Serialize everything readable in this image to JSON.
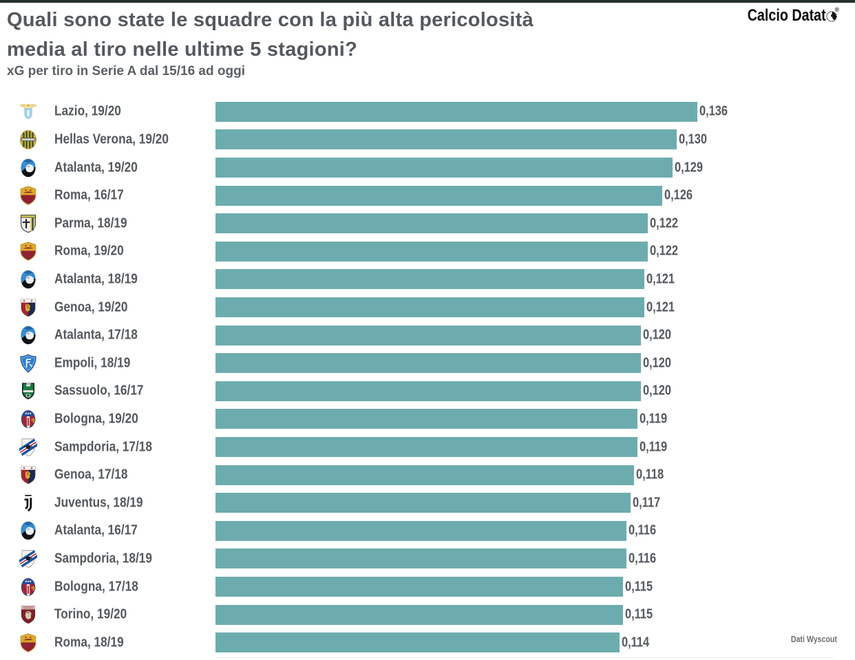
{
  "page": {
    "background": "#ffffff",
    "top_border_color": "#242f2c",
    "accent_teal": "#6dacae",
    "text_gray": "#54595e"
  },
  "header": {
    "title_line1": "Quali sono state le squadre con la più alta pericolosità",
    "title_line2": "media al tiro nelle ultime 5 stagioni?",
    "subtitle": "xG per tiro in Serie A dal 15/16 ad oggi"
  },
  "logo": {
    "text": "Calcio Datat",
    "ball_icon": "football-icon",
    "registered_mark": "®"
  },
  "footer": {
    "source": "Dati Wyscout"
  },
  "chart_data": {
    "type": "bar",
    "orientation": "horizontal",
    "title": "Quali sono state le squadre con la più alta pericolosità media al tiro nelle ultime 5 stagioni?",
    "subtitle": "xG per tiro in Serie A dal 15/16 ad oggi",
    "xlabel": "xG per tiro",
    "xlim": [
      0,
      0.136
    ],
    "bar_color": "#6dacae",
    "value_format": "0,000 (comma decimal)",
    "legend": "none",
    "grid": "off",
    "source": "Dati Wyscout",
    "rows": [
      {
        "team": "Lazio",
        "season": "19/20",
        "label": "Lazio, 19/20",
        "value": 0.136,
        "value_label": "0,136",
        "icon": "lazio-crest"
      },
      {
        "team": "Hellas Verona",
        "season": "19/20",
        "label": "Hellas Verona, 19/20",
        "value": 0.13,
        "value_label": "0,130",
        "icon": "hellas-verona-crest"
      },
      {
        "team": "Atalanta",
        "season": "19/20",
        "label": "Atalanta, 19/20",
        "value": 0.129,
        "value_label": "0,129",
        "icon": "atalanta-crest"
      },
      {
        "team": "Roma",
        "season": "16/17",
        "label": "Roma, 16/17",
        "value": 0.126,
        "value_label": "0,126",
        "icon": "roma-crest"
      },
      {
        "team": "Parma",
        "season": "18/19",
        "label": "Parma, 18/19",
        "value": 0.122,
        "value_label": "0,122",
        "icon": "parma-crest"
      },
      {
        "team": "Roma",
        "season": "19/20",
        "label": "Roma, 19/20",
        "value": 0.122,
        "value_label": "0,122",
        "icon": "roma-crest"
      },
      {
        "team": "Atalanta",
        "season": "18/19",
        "label": "Atalanta, 18/19",
        "value": 0.121,
        "value_label": "0,121",
        "icon": "atalanta-crest"
      },
      {
        "team": "Genoa",
        "season": "19/20",
        "label": "Genoa, 19/20",
        "value": 0.121,
        "value_label": "0,121",
        "icon": "genoa-crest"
      },
      {
        "team": "Atalanta",
        "season": "17/18",
        "label": "Atalanta, 17/18",
        "value": 0.12,
        "value_label": "0,120",
        "icon": "atalanta-crest"
      },
      {
        "team": "Empoli",
        "season": "18/19",
        "label": "Empoli, 18/19",
        "value": 0.12,
        "value_label": "0,120",
        "icon": "empoli-crest"
      },
      {
        "team": "Sassuolo",
        "season": "16/17",
        "label": "Sassuolo, 16/17",
        "value": 0.12,
        "value_label": "0,120",
        "icon": "sassuolo-crest"
      },
      {
        "team": "Bologna",
        "season": "19/20",
        "label": "Bologna, 19/20",
        "value": 0.119,
        "value_label": "0,119",
        "icon": "bologna-crest"
      },
      {
        "team": "Sampdoria",
        "season": "17/18",
        "label": "Sampdoria, 17/18",
        "value": 0.119,
        "value_label": "0,119",
        "icon": "sampdoria-crest"
      },
      {
        "team": "Genoa",
        "season": "17/18",
        "label": "Genoa, 17/18",
        "value": 0.118,
        "value_label": "0,118",
        "icon": "genoa-crest"
      },
      {
        "team": "Juventus",
        "season": "18/19",
        "label": "Juventus, 18/19",
        "value": 0.117,
        "value_label": "0,117",
        "icon": "juventus-crest"
      },
      {
        "team": "Atalanta",
        "season": "16/17",
        "label": "Atalanta, 16/17",
        "value": 0.116,
        "value_label": "0,116",
        "icon": "atalanta-crest"
      },
      {
        "team": "Sampdoria",
        "season": "18/19",
        "label": "Sampdoria, 18/19",
        "value": 0.116,
        "value_label": "0,116",
        "icon": "sampdoria-crest"
      },
      {
        "team": "Bologna",
        "season": "17/18",
        "label": "Bologna, 17/18",
        "value": 0.115,
        "value_label": "0,115",
        "icon": "bologna-crest"
      },
      {
        "team": "Torino",
        "season": "19/20",
        "label": "Torino, 19/20",
        "value": 0.115,
        "value_label": "0,115",
        "icon": "torino-crest"
      },
      {
        "team": "Roma",
        "season": "18/19",
        "label": "Roma, 18/19",
        "value": 0.114,
        "value_label": "0,114",
        "icon": "roma-crest"
      }
    ]
  }
}
